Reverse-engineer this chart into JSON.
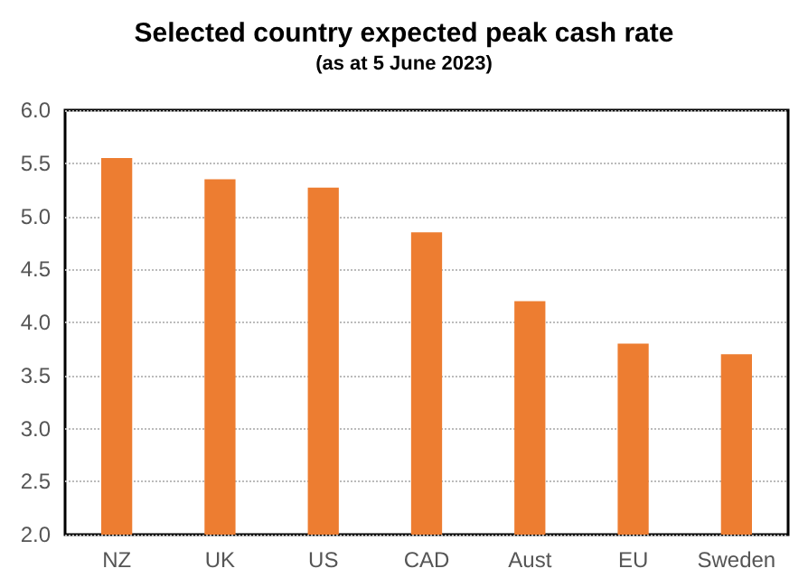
{
  "chart_data": {
    "type": "bar",
    "title": "Selected country expected peak cash rate",
    "subtitle": "(as at 5 June 2023)",
    "categories": [
      "NZ",
      "UK",
      "US",
      "CAD",
      "Aust",
      "EU",
      "Sweden"
    ],
    "values": [
      5.55,
      5.35,
      5.27,
      4.85,
      4.2,
      3.8,
      3.7
    ],
    "color": "#ed7d31",
    "ylim": [
      2.0,
      6.0
    ],
    "yticks": [
      {
        "value": 2,
        "label": "2.0"
      },
      {
        "value": 2.5,
        "label": "2.5"
      },
      {
        "value": 3,
        "label": "3.0"
      },
      {
        "value": 3.5,
        "label": "3.5"
      },
      {
        "value": 4,
        "label": "4.0"
      },
      {
        "value": 4.5,
        "label": "4.5"
      },
      {
        "value": 5,
        "label": "5.0"
      },
      {
        "value": 5.5,
        "label": "5.5"
      },
      {
        "value": 6,
        "label": "6.0"
      }
    ],
    "grid": "y"
  }
}
